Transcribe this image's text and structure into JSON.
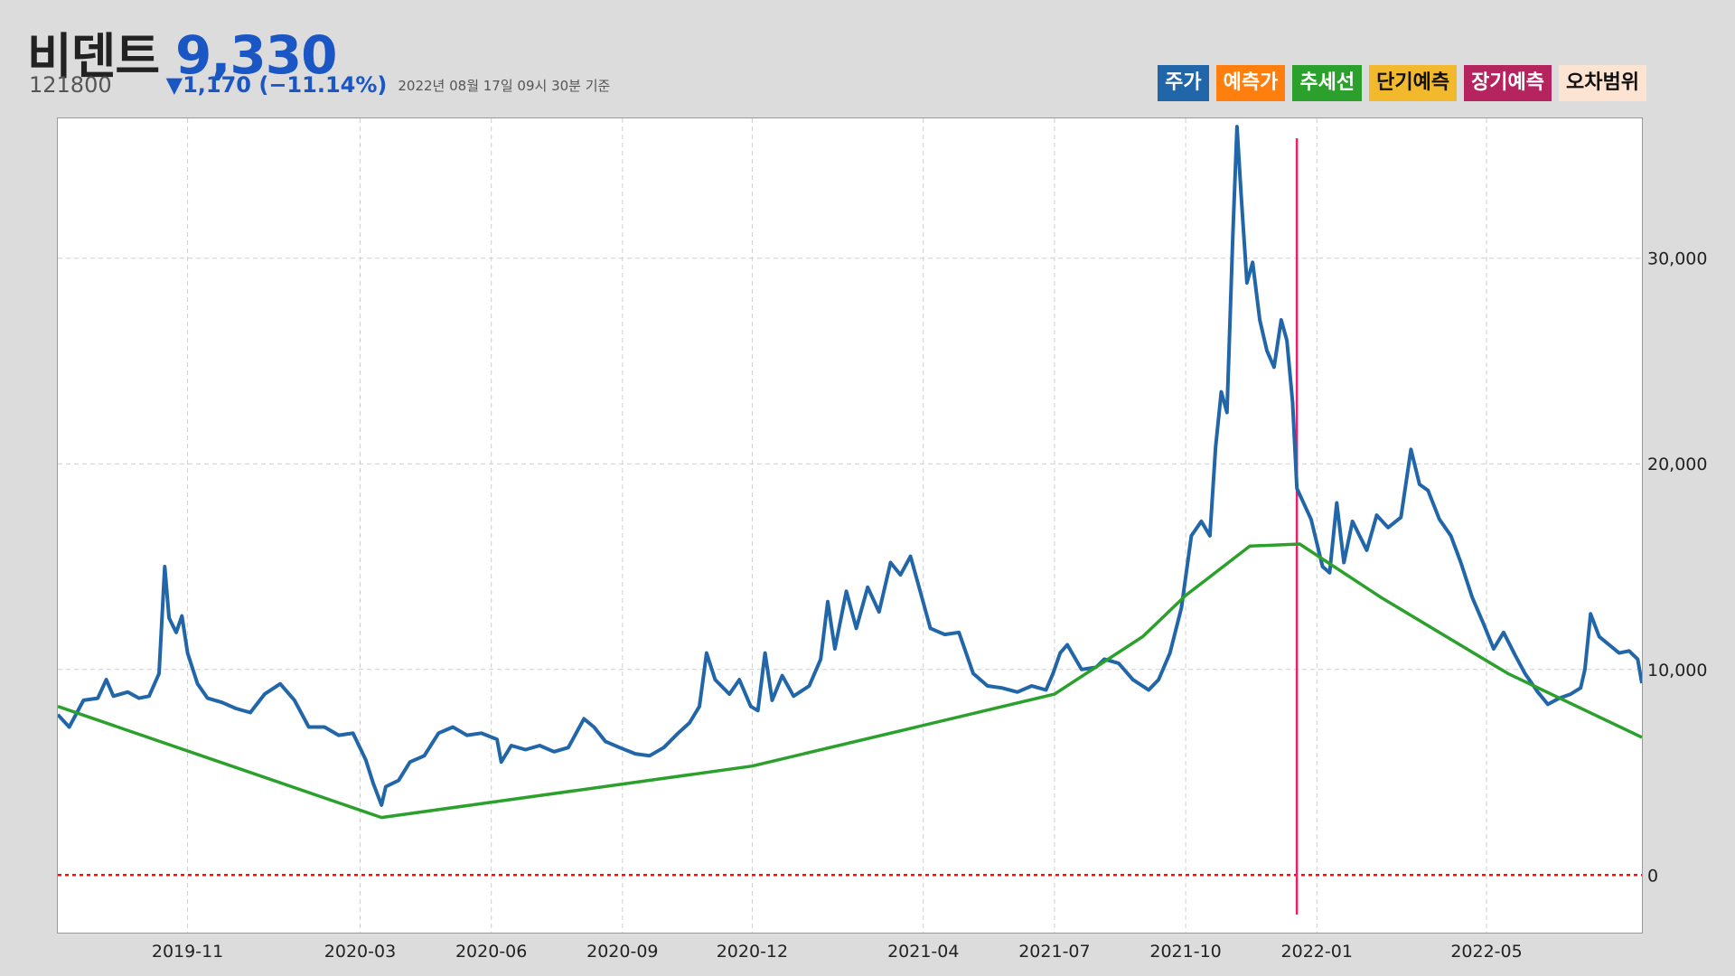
{
  "header": {
    "name": "비덴트",
    "price": "9,330",
    "code": "121800",
    "change": "▼1,170 (−11.14%)",
    "timestamp": "2022년 08월 17일 09시 30분 기준"
  },
  "legend": [
    {
      "label": "주가",
      "color": "#2166a8",
      "text_color": "#ffffff"
    },
    {
      "label": "예측가",
      "color": "#ff7f0e",
      "text_color": "#ffffff"
    },
    {
      "label": "추세선",
      "color": "#2ca02c",
      "text_color": "#ffffff"
    },
    {
      "label": "단기예측",
      "color": "#f3b92d",
      "text_color": "#111111"
    },
    {
      "label": "장기예측",
      "color": "#b5245f",
      "text_color": "#ffffff"
    },
    {
      "label": "오차범위",
      "color": "#fde3d1",
      "text_color": "#111111"
    }
  ],
  "chart_data": {
    "type": "line",
    "x_tick_labels": [
      "2019-11",
      "2020-03",
      "2020-06",
      "2020-09",
      "2020-12",
      "2021-04",
      "2021-07",
      "2021-10",
      "2022-01",
      "2022-05"
    ],
    "x_tick_dates": [
      "2019-11-01",
      "2020-03-01",
      "2020-06-01",
      "2020-09-01",
      "2020-12-01",
      "2021-03-31",
      "2021-07-01",
      "2021-10-01",
      "2022-01-01",
      "2022-04-30"
    ],
    "y_tick_labels": [
      "0",
      "10,000",
      "20,000",
      "30,000"
    ],
    "y_ticks": [
      0,
      10000,
      20000,
      30000
    ],
    "ylim": [
      -2800,
      36800
    ],
    "xlim": [
      "2019-08-02",
      "2022-08-17"
    ],
    "grid": true,
    "series": [
      {
        "name": "주가",
        "color": "#2166a8",
        "points": [
          [
            "2019-08-02",
            7800
          ],
          [
            "2019-08-10",
            7200
          ],
          [
            "2019-08-20",
            8500
          ],
          [
            "2019-08-30",
            8600
          ],
          [
            "2019-09-05",
            9500
          ],
          [
            "2019-09-10",
            8700
          ],
          [
            "2019-09-20",
            8900
          ],
          [
            "2019-09-28",
            8600
          ],
          [
            "2019-10-05",
            8700
          ],
          [
            "2019-10-12",
            9800
          ],
          [
            "2019-10-16",
            15000
          ],
          [
            "2019-10-19",
            12500
          ],
          [
            "2019-10-24",
            11800
          ],
          [
            "2019-10-28",
            12600
          ],
          [
            "2019-11-01",
            10800
          ],
          [
            "2019-11-08",
            9300
          ],
          [
            "2019-11-15",
            8600
          ],
          [
            "2019-11-25",
            8400
          ],
          [
            "2019-12-05",
            8100
          ],
          [
            "2019-12-15",
            7900
          ],
          [
            "2019-12-25",
            8800
          ],
          [
            "2020-01-05",
            9300
          ],
          [
            "2020-01-15",
            8500
          ],
          [
            "2020-01-25",
            7200
          ],
          [
            "2020-02-05",
            7200
          ],
          [
            "2020-02-15",
            6800
          ],
          [
            "2020-02-25",
            6900
          ],
          [
            "2020-03-05",
            5600
          ],
          [
            "2020-03-10",
            4500
          ],
          [
            "2020-03-16",
            3400
          ],
          [
            "2020-03-19",
            4300
          ],
          [
            "2020-03-28",
            4600
          ],
          [
            "2020-04-05",
            5500
          ],
          [
            "2020-04-15",
            5800
          ],
          [
            "2020-04-25",
            6900
          ],
          [
            "2020-05-05",
            7200
          ],
          [
            "2020-05-15",
            6800
          ],
          [
            "2020-05-25",
            6900
          ],
          [
            "2020-06-05",
            6600
          ],
          [
            "2020-06-08",
            5500
          ],
          [
            "2020-06-15",
            6300
          ],
          [
            "2020-06-25",
            6100
          ],
          [
            "2020-07-05",
            6300
          ],
          [
            "2020-07-15",
            6000
          ],
          [
            "2020-07-25",
            6200
          ],
          [
            "2020-08-05",
            7600
          ],
          [
            "2020-08-12",
            7200
          ],
          [
            "2020-08-20",
            6500
          ],
          [
            "2020-08-30",
            6200
          ],
          [
            "2020-09-10",
            5900
          ],
          [
            "2020-09-20",
            5800
          ],
          [
            "2020-09-30",
            6200
          ],
          [
            "2020-10-10",
            6900
          ],
          [
            "2020-10-18",
            7400
          ],
          [
            "2020-10-25",
            8200
          ],
          [
            "2020-10-30",
            10800
          ],
          [
            "2020-11-05",
            9500
          ],
          [
            "2020-11-15",
            8800
          ],
          [
            "2020-11-22",
            9500
          ],
          [
            "2020-11-30",
            8200
          ],
          [
            "2020-12-05",
            8000
          ],
          [
            "2020-12-10",
            10800
          ],
          [
            "2020-12-15",
            8500
          ],
          [
            "2020-12-22",
            9700
          ],
          [
            "2020-12-30",
            8700
          ],
          [
            "2021-01-10",
            9200
          ],
          [
            "2021-01-18",
            10500
          ],
          [
            "2021-01-23",
            13300
          ],
          [
            "2021-01-28",
            11000
          ],
          [
            "2021-02-05",
            13800
          ],
          [
            "2021-02-12",
            12000
          ],
          [
            "2021-02-20",
            14000
          ],
          [
            "2021-02-28",
            12800
          ],
          [
            "2021-03-08",
            15200
          ],
          [
            "2021-03-15",
            14600
          ],
          [
            "2021-03-22",
            15500
          ],
          [
            "2021-03-30",
            13500
          ],
          [
            "2021-04-05",
            12000
          ],
          [
            "2021-04-15",
            11700
          ],
          [
            "2021-04-25",
            11800
          ],
          [
            "2021-05-05",
            9800
          ],
          [
            "2021-05-15",
            9200
          ],
          [
            "2021-05-25",
            9100
          ],
          [
            "2021-06-05",
            8900
          ],
          [
            "2021-06-15",
            9200
          ],
          [
            "2021-06-25",
            9000
          ],
          [
            "2021-06-30",
            9800
          ],
          [
            "2021-07-05",
            10800
          ],
          [
            "2021-07-10",
            11200
          ],
          [
            "2021-07-20",
            10000
          ],
          [
            "2021-07-30",
            10100
          ],
          [
            "2021-08-05",
            10500
          ],
          [
            "2021-08-15",
            10300
          ],
          [
            "2021-08-25",
            9500
          ],
          [
            "2021-09-05",
            9000
          ],
          [
            "2021-09-12",
            9500
          ],
          [
            "2021-09-20",
            10800
          ],
          [
            "2021-09-28",
            13000
          ],
          [
            "2021-10-05",
            16500
          ],
          [
            "2021-10-12",
            17200
          ],
          [
            "2021-10-18",
            16500
          ],
          [
            "2021-10-22",
            20800
          ],
          [
            "2021-10-26",
            23500
          ],
          [
            "2021-10-30",
            22500
          ],
          [
            "2021-11-03",
            31000
          ],
          [
            "2021-11-06",
            36400
          ],
          [
            "2021-11-09",
            33000
          ],
          [
            "2021-11-13",
            28800
          ],
          [
            "2021-11-17",
            29800
          ],
          [
            "2021-11-22",
            27000
          ],
          [
            "2021-11-27",
            25500
          ],
          [
            "2021-12-02",
            24700
          ],
          [
            "2021-12-07",
            27000
          ],
          [
            "2021-12-11",
            26000
          ],
          [
            "2021-12-15",
            23000
          ],
          [
            "2021-12-18",
            18800
          ],
          [
            "2021-12-22",
            18200
          ],
          [
            "2021-12-28",
            17300
          ],
          [
            "2022-01-05",
            15000
          ],
          [
            "2022-01-10",
            14700
          ],
          [
            "2022-01-15",
            18100
          ],
          [
            "2022-01-20",
            15200
          ],
          [
            "2022-01-26",
            17200
          ],
          [
            "2022-02-05",
            15800
          ],
          [
            "2022-02-12",
            17500
          ],
          [
            "2022-02-20",
            16900
          ],
          [
            "2022-03-01",
            17400
          ],
          [
            "2022-03-08",
            20700
          ],
          [
            "2022-03-14",
            19000
          ],
          [
            "2022-03-20",
            18700
          ],
          [
            "2022-03-28",
            17300
          ],
          [
            "2022-04-05",
            16500
          ],
          [
            "2022-04-12",
            15200
          ],
          [
            "2022-04-20",
            13500
          ],
          [
            "2022-04-28",
            12200
          ],
          [
            "2022-05-05",
            11000
          ],
          [
            "2022-05-12",
            11800
          ],
          [
            "2022-05-20",
            10700
          ],
          [
            "2022-05-27",
            9800
          ],
          [
            "2022-06-05",
            8900
          ],
          [
            "2022-06-12",
            8300
          ],
          [
            "2022-06-20",
            8600
          ],
          [
            "2022-06-28",
            8800
          ],
          [
            "2022-07-05",
            9100
          ],
          [
            "2022-07-08",
            10000
          ],
          [
            "2022-07-12",
            12700
          ],
          [
            "2022-07-18",
            11600
          ],
          [
            "2022-07-25",
            11200
          ],
          [
            "2022-08-01",
            10800
          ],
          [
            "2022-08-08",
            10900
          ],
          [
            "2022-08-14",
            10500
          ],
          [
            "2022-08-17",
            9330
          ]
        ]
      },
      {
        "name": "추세선",
        "color": "#2ca02c",
        "points": [
          [
            "2019-08-02",
            8200
          ],
          [
            "2020-03-16",
            2800
          ],
          [
            "2020-12-01",
            5300
          ],
          [
            "2021-07-01",
            8800
          ],
          [
            "2021-09-01",
            11600
          ],
          [
            "2021-10-01",
            13600
          ],
          [
            "2021-11-15",
            16000
          ],
          [
            "2021-12-20",
            16100
          ],
          [
            "2022-02-15",
            13500
          ],
          [
            "2022-05-15",
            9800
          ],
          [
            "2022-08-17",
            6700
          ]
        ]
      }
    ],
    "zero_line": {
      "value": 0,
      "color": "#ee1111"
    },
    "vline": {
      "date": "2021-12-18",
      "color": "#ee1f6a"
    }
  }
}
